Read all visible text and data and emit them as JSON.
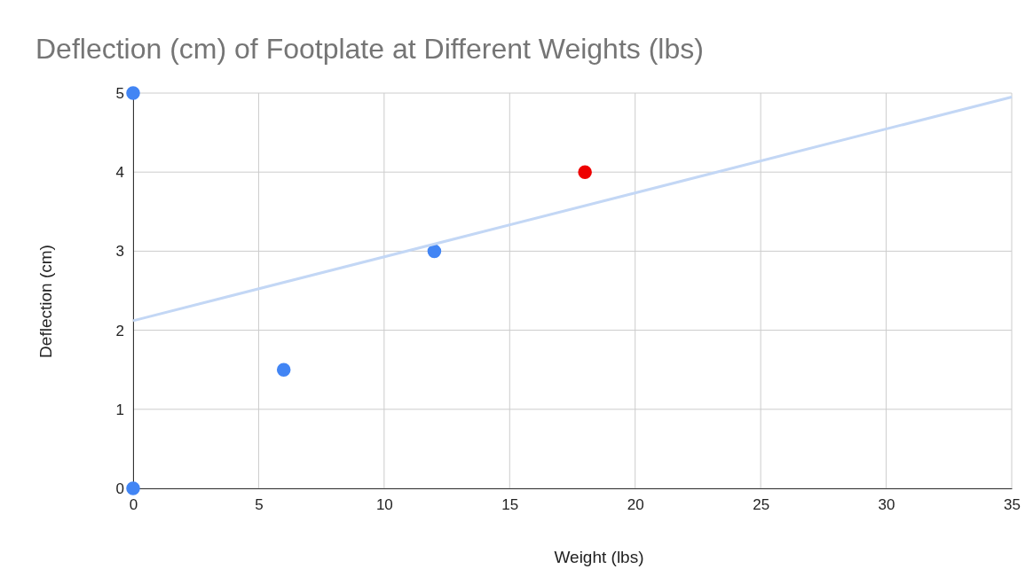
{
  "chart_data": {
    "type": "scatter",
    "title": "Deflection (cm) of Footplate at Different Weights (lbs)",
    "xlabel": "Weight (lbs)",
    "ylabel": "Deflection (cm)",
    "xlim": [
      0,
      35
    ],
    "xticks": [
      0,
      5,
      10,
      15,
      20,
      25,
      30,
      35
    ],
    "ylim": [
      0,
      5
    ],
    "yticks": [
      0,
      1,
      2,
      3,
      4,
      5
    ],
    "grid": true,
    "series": [
      {
        "marker": "circle",
        "x": [
          0,
          0,
          6,
          12,
          18
        ],
        "values": [
          5,
          0,
          1.5,
          3,
          4
        ],
        "colors": [
          "#4285f4",
          "#4285f4",
          "#4285f4",
          "#4285f4",
          "#ee0000"
        ]
      },
      {
        "type": "line",
        "x": [
          0,
          35
        ],
        "values": [
          2.12,
          4.95
        ],
        "color": "#c3d7f5",
        "line_style": "solid"
      }
    ]
  }
}
